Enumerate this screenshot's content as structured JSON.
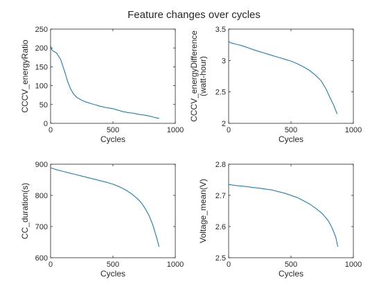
{
  "figure": {
    "title": "Feature changes over cycles",
    "line_color": "#0072BD"
  },
  "chart_data": [
    {
      "type": "line",
      "xlabel": "Cycles",
      "ylabel": [
        "CCCV_energyRatio"
      ],
      "xlim": [
        0,
        1000
      ],
      "ylim": [
        0,
        250
      ],
      "xticks": [
        0,
        500,
        1000
      ],
      "yticks": [
        0,
        50,
        100,
        150,
        200,
        250
      ],
      "grid": false,
      "series": [
        {
          "x": [
            1,
            5,
            10,
            20,
            30,
            40,
            50,
            60,
            70,
            80,
            90,
            100,
            110,
            120,
            130,
            140,
            150,
            160,
            170,
            180,
            190,
            200,
            220,
            240,
            260,
            280,
            300,
            320,
            340,
            360,
            380,
            400,
            420,
            440,
            460,
            480,
            500,
            520,
            540,
            560,
            580,
            600,
            630,
            660,
            690,
            720,
            750,
            780,
            810,
            840,
            870
          ],
          "y": [
            205,
            200,
            195,
            192,
            190,
            188,
            186,
            180,
            175,
            170,
            160,
            150,
            140,
            130,
            118,
            108,
            100,
            92,
            86,
            80,
            76,
            72,
            67,
            63,
            60,
            57,
            55,
            53,
            51,
            49,
            47,
            45,
            44,
            42,
            41,
            40,
            39,
            37,
            35,
            33,
            31,
            30,
            28,
            27,
            25,
            23,
            22,
            20,
            18,
            15,
            13
          ]
        }
      ]
    },
    {
      "type": "line",
      "xlabel": "Cycles",
      "ylabel": [
        "CCCV_energyDifference",
        "(watt-hour)"
      ],
      "xlim": [
        0,
        1000
      ],
      "ylim": [
        2,
        3.5
      ],
      "xticks": [
        0,
        500,
        1000
      ],
      "yticks": [
        2,
        2.5,
        3,
        3.5
      ],
      "grid": false,
      "series": [
        {
          "x": [
            1,
            20,
            40,
            60,
            80,
            100,
            130,
            160,
            200,
            250,
            300,
            350,
            400,
            450,
            500,
            550,
            600,
            650,
            700,
            740,
            780,
            810,
            840,
            860,
            870
          ],
          "y": [
            3.3,
            3.28,
            3.27,
            3.26,
            3.25,
            3.24,
            3.22,
            3.2,
            3.17,
            3.14,
            3.11,
            3.08,
            3.05,
            3.02,
            2.99,
            2.95,
            2.9,
            2.84,
            2.76,
            2.68,
            2.55,
            2.42,
            2.3,
            2.2,
            2.15
          ]
        }
      ]
    },
    {
      "type": "line",
      "xlabel": "Cycles",
      "ylabel": [
        "CC_duration(s)"
      ],
      "xlim": [
        0,
        1000
      ],
      "ylim": [
        600,
        900
      ],
      "xticks": [
        0,
        500,
        1000
      ],
      "yticks": [
        600,
        700,
        800,
        900
      ],
      "grid": false,
      "series": [
        {
          "x": [
            1,
            20,
            50,
            100,
            150,
            200,
            250,
            300,
            350,
            400,
            450,
            500,
            550,
            600,
            650,
            700,
            730,
            760,
            790,
            820,
            850,
            870
          ],
          "y": [
            888,
            886,
            882,
            877,
            872,
            867,
            862,
            857,
            852,
            847,
            842,
            836,
            828,
            818,
            805,
            788,
            775,
            757,
            735,
            705,
            665,
            635
          ]
        }
      ]
    },
    {
      "type": "line",
      "xlabel": "Cycles",
      "ylabel": [
        "Voltage_mean(V)"
      ],
      "xlim": [
        0,
        1000
      ],
      "ylim": [
        2.5,
        2.8
      ],
      "xticks": [
        0,
        500,
        1000
      ],
      "yticks": [
        2.5,
        2.6,
        2.7,
        2.8
      ],
      "grid": false,
      "series": [
        {
          "x": [
            1,
            50,
            100,
            150,
            200,
            250,
            300,
            350,
            400,
            450,
            500,
            550,
            600,
            650,
            700,
            750,
            800,
            830,
            860,
            875
          ],
          "y": [
            2.735,
            2.732,
            2.73,
            2.728,
            2.725,
            2.723,
            2.72,
            2.717,
            2.712,
            2.707,
            2.7,
            2.693,
            2.683,
            2.672,
            2.658,
            2.642,
            2.618,
            2.595,
            2.565,
            2.535
          ]
        }
      ]
    }
  ]
}
